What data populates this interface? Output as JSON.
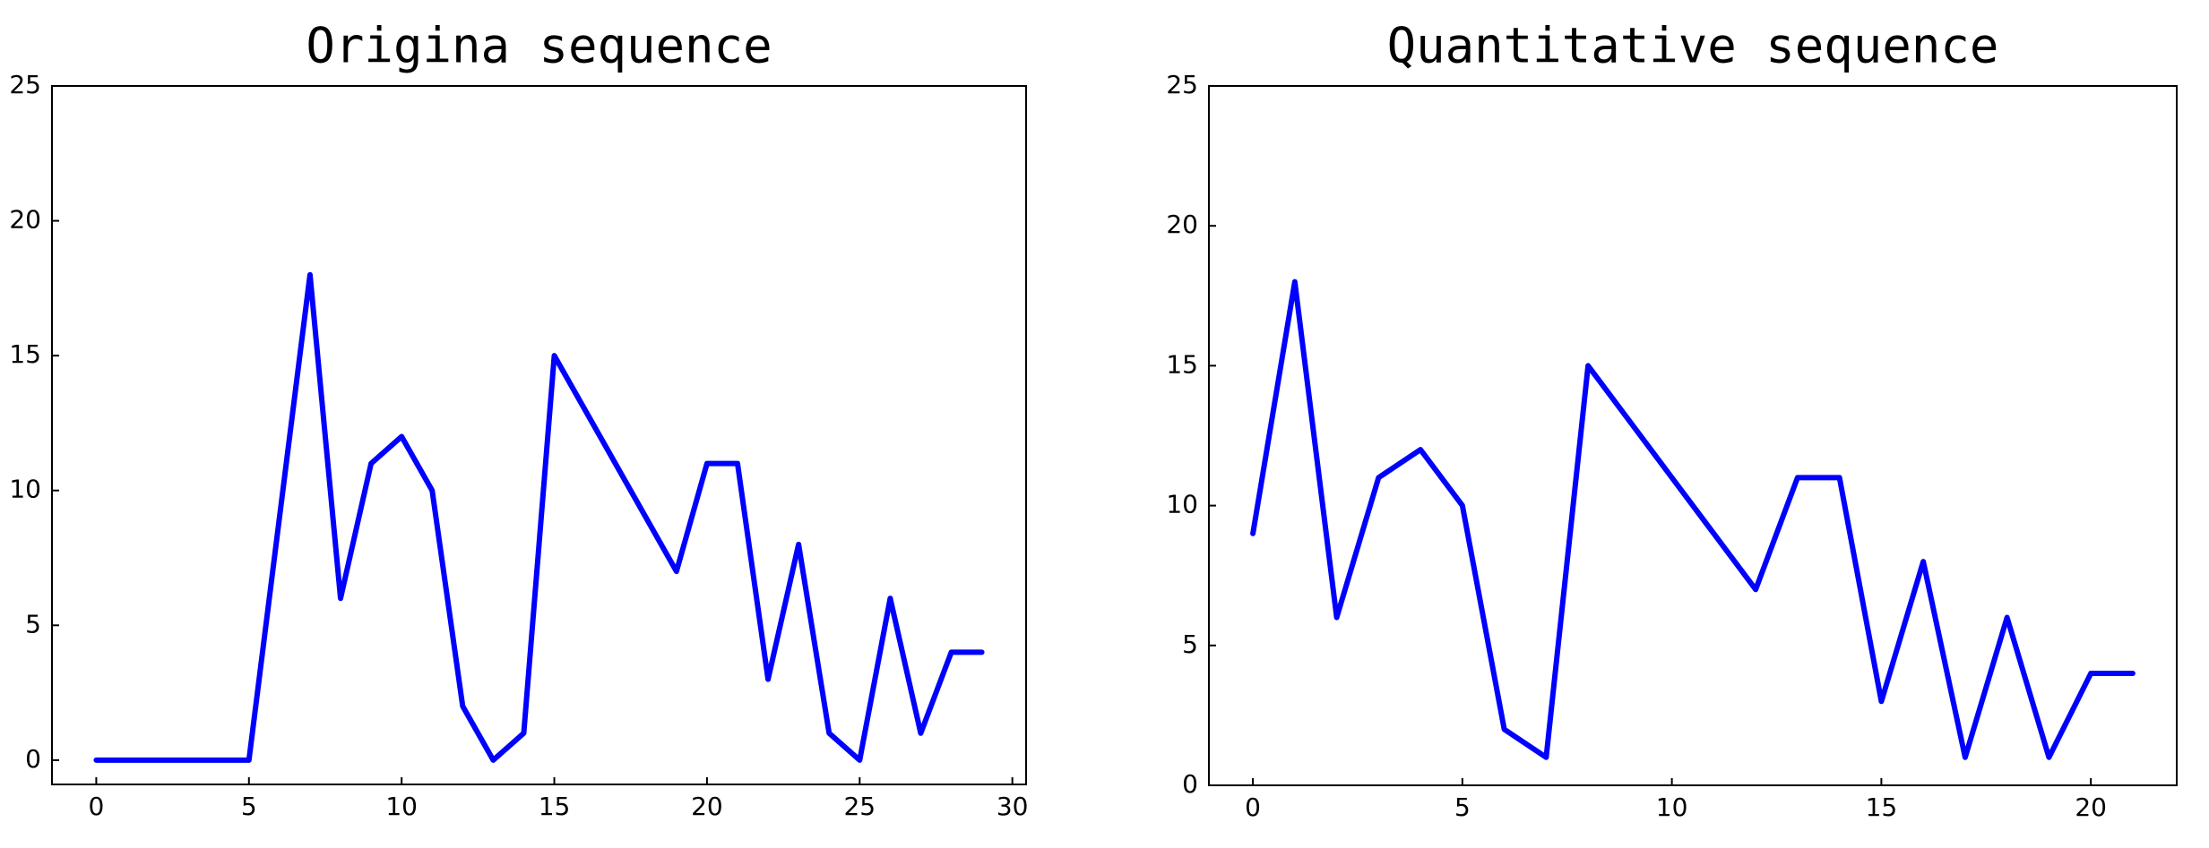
{
  "chart_data": [
    {
      "type": "line",
      "title": "Origina sequence",
      "x": [
        0,
        1,
        2,
        3,
        4,
        5,
        6,
        7,
        8,
        9,
        10,
        11,
        12,
        13,
        14,
        15,
        16,
        17,
        18,
        19,
        20,
        21,
        22,
        23,
        24,
        25,
        26,
        27,
        28,
        29
      ],
      "series": [
        {
          "color": "#0000ff",
          "values": [
            0,
            0,
            0,
            0,
            0,
            0,
            9,
            18,
            6,
            11,
            12,
            10,
            2,
            0,
            1,
            15,
            13,
            11,
            9,
            7,
            11,
            11,
            3,
            8,
            1,
            0,
            6,
            1,
            4,
            4
          ]
        }
      ],
      "xlim": [
        -1.45,
        30.45
      ],
      "ylim": [
        -0.9,
        25
      ],
      "xticks": [
        0,
        5,
        10,
        15,
        20,
        25,
        30
      ],
      "yticks": [
        0,
        5,
        10,
        15,
        20,
        25
      ]
    },
    {
      "type": "line",
      "title": "Quantitative sequence",
      "x": [
        0,
        1,
        2,
        3,
        4,
        5,
        6,
        7,
        8,
        9,
        10,
        11,
        12,
        13,
        14,
        15,
        16,
        17,
        18,
        19,
        20,
        21
      ],
      "series": [
        {
          "color": "#0000ff",
          "values": [
            9,
            18,
            6,
            11,
            12,
            10,
            2,
            1,
            15,
            13,
            11,
            9,
            7,
            11,
            11,
            3,
            8,
            1,
            6,
            1,
            4,
            4
          ]
        }
      ],
      "xlim": [
        -1.05,
        22.05
      ],
      "ylim": [
        0,
        25
      ],
      "xticks": [
        0,
        5,
        10,
        15,
        20
      ],
      "yticks": [
        0,
        5,
        10,
        15,
        20,
        25
      ]
    }
  ]
}
